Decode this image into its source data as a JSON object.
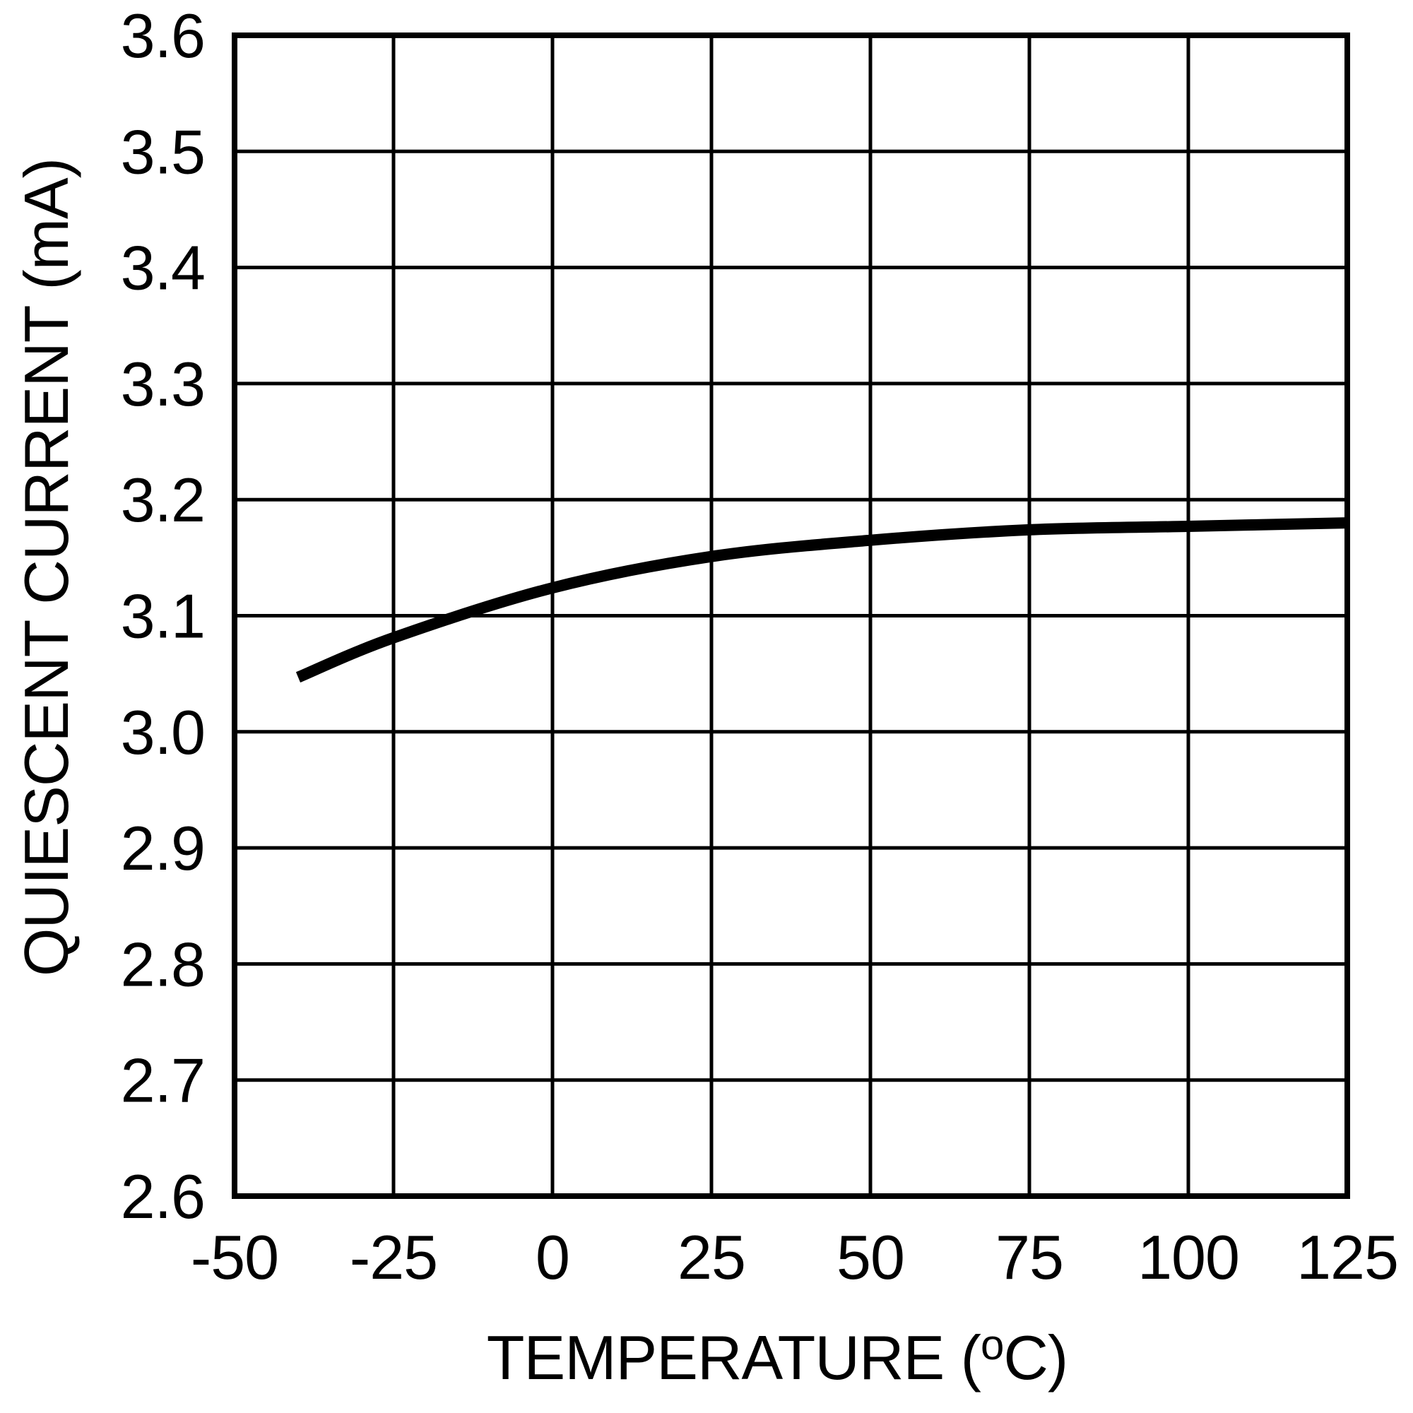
{
  "figure": {
    "background": "#ffffff",
    "ink": "#000000"
  },
  "chart_data": {
    "type": "line",
    "title": "",
    "xlabel": "TEMPERATURE (°C)",
    "xlabel_parts": {
      "prefix": "TEMPERATURE (",
      "sup": "o",
      "suffix": "C)"
    },
    "ylabel": "QUIESCENT CURRENT (mA)",
    "xlim": [
      -50,
      125
    ],
    "ylim": [
      2.6,
      3.6
    ],
    "x_ticks": [
      -50,
      -25,
      0,
      25,
      50,
      75,
      100,
      125
    ],
    "x_tick_labels": [
      "-50",
      "-25",
      "0",
      "25",
      "50",
      "75",
      "100",
      "125"
    ],
    "y_ticks": [
      2.6,
      2.7,
      2.8,
      2.9,
      3.0,
      3.1,
      3.2,
      3.3,
      3.4,
      3.5,
      3.6
    ],
    "y_tick_labels": [
      "2.6",
      "2.7",
      "2.8",
      "2.9",
      "3.0",
      "3.1",
      "3.2",
      "3.3",
      "3.4",
      "3.5",
      "3.6"
    ],
    "grid": true,
    "legend": "none",
    "series": [
      {
        "x": [
          -40,
          -25,
          0,
          25,
          50,
          75,
          100,
          125
        ],
        "y": [
          3.047,
          3.081,
          3.124,
          3.151,
          3.165,
          3.174,
          3.177,
          3.18
        ]
      }
    ]
  }
}
